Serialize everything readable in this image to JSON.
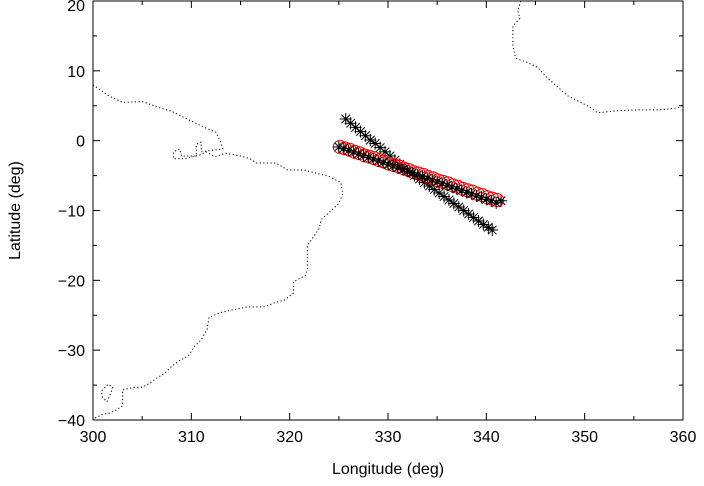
{
  "chart_data": {
    "type": "scatter",
    "title": "",
    "xlabel": "Longitude (deg)",
    "ylabel": "Latitude (deg)",
    "xlim": [
      300,
      360
    ],
    "ylim": [
      -40,
      20
    ],
    "xticks": [
      300,
      310,
      320,
      330,
      340,
      350,
      360
    ],
    "yticks": [
      -40,
      -30,
      -20,
      -10,
      0,
      10,
      20
    ],
    "xtick_labels": [
      "300",
      "310",
      "320",
      "330",
      "340",
      "350",
      "360"
    ],
    "ytick_labels": [
      "−40",
      "−30",
      "−20",
      "−10",
      "0",
      "10",
      "20"
    ],
    "grid": false,
    "series": [
      {
        "marker": "star",
        "color": "#000000",
        "x": [
          325.7,
          326.2,
          326.7,
          327.2,
          327.7,
          328.2,
          328.7,
          329.2,
          329.7,
          330.2,
          330.7,
          331.2,
          331.7,
          332.2,
          332.7,
          333.2,
          333.7,
          334.2,
          334.7,
          335.2,
          335.7,
          336.2,
          336.7,
          337.2,
          337.7,
          338.2,
          338.7,
          339.2,
          339.7,
          340.2,
          340.6
        ],
        "y": [
          3.1,
          2.5,
          1.9,
          1.3,
          0.7,
          0.1,
          -0.4,
          -1.0,
          -1.6,
          -2.2,
          -2.8,
          -3.4,
          -4.0,
          -4.5,
          -5.0,
          -5.5,
          -6.0,
          -6.5,
          -7.0,
          -7.5,
          -8.0,
          -8.5,
          -9.0,
          -9.5,
          -10.0,
          -10.5,
          -11.0,
          -11.5,
          -12.0,
          -12.4,
          -12.8
        ]
      },
      {
        "marker": "circle",
        "color": "#ff0000",
        "x": [
          325.1,
          325.6,
          326.1,
          326.6,
          327.1,
          327.6,
          328.1,
          328.6,
          329.1,
          329.6,
          330.1,
          330.6,
          331.1,
          331.6,
          332.1,
          332.6,
          333.1,
          333.6,
          334.1,
          334.6,
          335.1,
          335.6,
          336.1,
          336.6,
          337.1,
          337.6,
          338.1,
          338.6,
          339.1,
          339.6,
          340.1,
          340.6,
          341.1
        ],
        "y": [
          -0.9,
          -1.1,
          -1.3,
          -1.6,
          -1.8,
          -2.1,
          -2.3,
          -2.5,
          -2.8,
          -3.0,
          -3.3,
          -3.5,
          -3.7,
          -4.0,
          -4.2,
          -4.5,
          -4.7,
          -4.9,
          -5.2,
          -5.4,
          -5.7,
          -5.9,
          -6.1,
          -6.4,
          -6.6,
          -6.9,
          -7.1,
          -7.3,
          -7.6,
          -7.8,
          -8.1,
          -8.3,
          -8.5
        ]
      },
      {
        "marker": "star",
        "color": "#000000",
        "x": [
          325.0,
          325.5,
          326.0,
          326.5,
          327.0,
          327.5,
          328.0,
          328.5,
          329.0,
          329.5,
          330.0,
          330.5,
          331.0,
          331.5,
          332.0,
          332.5,
          333.0,
          333.5,
          334.0,
          334.5,
          335.0,
          335.5,
          336.0,
          336.5,
          337.0,
          337.5,
          338.0,
          338.5,
          339.0,
          339.5,
          340.0,
          340.5,
          341.0,
          341.5
        ],
        "y": [
          -0.9,
          -1.1,
          -1.4,
          -1.6,
          -1.9,
          -2.1,
          -2.4,
          -2.6,
          -2.9,
          -3.1,
          -3.4,
          -3.6,
          -3.9,
          -4.1,
          -4.4,
          -4.6,
          -4.9,
          -5.1,
          -5.4,
          -5.6,
          -5.9,
          -6.1,
          -6.4,
          -6.6,
          -6.9,
          -7.1,
          -7.4,
          -7.6,
          -7.9,
          -8.1,
          -8.4,
          -8.6,
          -8.9,
          -8.6
        ]
      }
    ],
    "coastlines": [
      [
        [
          300,
          8
        ],
        [
          301.5,
          6.5
        ],
        [
          303,
          5.5
        ],
        [
          305,
          5.6
        ],
        [
          307,
          4.6
        ],
        [
          308,
          4.2
        ],
        [
          309,
          3.5
        ],
        [
          310,
          2.8
        ],
        [
          311.5,
          1.8
        ],
        [
          312.5,
          1.2
        ],
        [
          313,
          -0.2
        ],
        [
          313.2,
          -1.2
        ],
        [
          312,
          -1.4
        ],
        [
          311,
          -1.6
        ],
        [
          311,
          -0.2
        ],
        [
          310.5,
          -0.5
        ],
        [
          310.5,
          -2.2
        ],
        [
          309,
          -2.2
        ],
        [
          308.8,
          -1.2
        ],
        [
          308.2,
          -1.6
        ],
        [
          308.2,
          -2.6
        ],
        [
          309.2,
          -2.6
        ],
        [
          310.8,
          -2.1
        ],
        [
          311.5,
          -1.6
        ],
        [
          312.4,
          -2.3
        ],
        [
          313.5,
          -1.8
        ],
        [
          315,
          -2.2
        ],
        [
          316,
          -2.6
        ],
        [
          316.6,
          -3.2
        ],
        [
          318.6,
          -3.2
        ],
        [
          319.8,
          -4.2
        ],
        [
          321.5,
          -4.2
        ],
        [
          322.8,
          -4.7
        ],
        [
          324,
          -5.1
        ],
        [
          325.2,
          -6.0
        ],
        [
          325.4,
          -7.6
        ],
        [
          325.0,
          -9.0
        ],
        [
          324.0,
          -10.3
        ],
        [
          323.2,
          -11.3
        ],
        [
          323.0,
          -12.6
        ],
        [
          322.4,
          -13.8
        ],
        [
          321.8,
          -15.0
        ],
        [
          321.8,
          -16.8
        ],
        [
          321.8,
          -18.5
        ],
        [
          321.6,
          -19.3
        ],
        [
          320.4,
          -20.2
        ],
        [
          320.4,
          -21.8
        ],
        [
          319.5,
          -22.8
        ],
        [
          318.5,
          -23.2
        ],
        [
          317.4,
          -23.8
        ],
        [
          315.7,
          -23.8
        ],
        [
          314.3,
          -24.2
        ],
        [
          313.0,
          -24.6
        ],
        [
          311.8,
          -25.3
        ],
        [
          311.6,
          -27.0
        ],
        [
          311.0,
          -28.5
        ],
        [
          310.3,
          -29.5
        ],
        [
          309.7,
          -30.8
        ],
        [
          308.8,
          -31.5
        ],
        [
          308.0,
          -32.3
        ],
        [
          307.3,
          -33.3
        ],
        [
          306.5,
          -34.0
        ],
        [
          305.7,
          -34.8
        ],
        [
          305.0,
          -35.3
        ],
        [
          304.2,
          -35.3
        ],
        [
          303.0,
          -35.7
        ],
        [
          303.0,
          -37.0
        ],
        [
          303.0,
          -38.0
        ],
        [
          302.2,
          -38.7
        ],
        [
          301.7,
          -39.0
        ],
        [
          301.0,
          -39.2
        ],
        [
          300.2,
          -39.7
        ],
        [
          300,
          -39.8
        ]
      ],
      [
        [
          300.9,
          -35.8
        ],
        [
          301.5,
          -34.9
        ],
        [
          302.0,
          -35.3
        ],
        [
          301.8,
          -36.2
        ],
        [
          301.4,
          -37.4
        ],
        [
          300.9,
          -36.6
        ],
        [
          300.9,
          -35.8
        ]
      ],
      [
        [
          343.5,
          20
        ],
        [
          343.2,
          18.6
        ],
        [
          343.4,
          17.5
        ],
        [
          342.7,
          16.4
        ],
        [
          342.7,
          15.3
        ],
        [
          342.7,
          13.5
        ],
        [
          343.0,
          11.8
        ],
        [
          344.2,
          11.2
        ],
        [
          345.2,
          10.5
        ],
        [
          346.2,
          9.0
        ],
        [
          347.0,
          8.0
        ],
        [
          348.3,
          6.4
        ],
        [
          349.6,
          5.5
        ],
        [
          350.5,
          4.8
        ],
        [
          351.3,
          4.0
        ],
        [
          353.5,
          4.3
        ],
        [
          355.4,
          4.4
        ],
        [
          357.5,
          4.4
        ],
        [
          359.5,
          4.7
        ],
        [
          360,
          5.2
        ]
      ]
    ]
  }
}
